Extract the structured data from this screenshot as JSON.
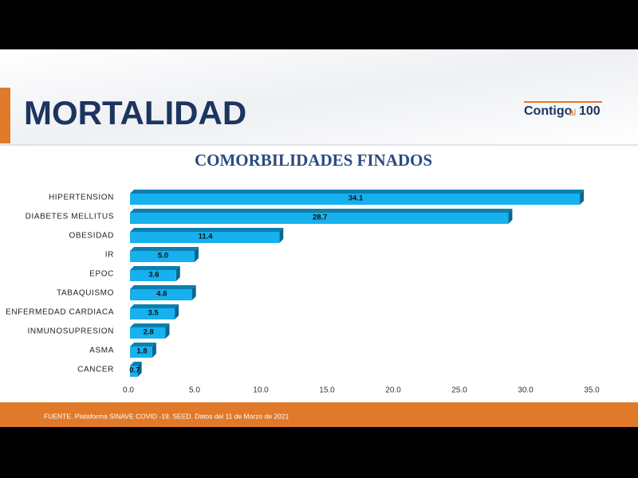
{
  "header": {
    "title": "MORTALIDAD",
    "logo": {
      "word": "Contigo",
      "small": "al",
      "number": "100"
    }
  },
  "chart_data": {
    "type": "bar",
    "orientation": "horizontal",
    "title": "COMORBILIDADES FINADOS",
    "categories": [
      "HIPERTENSION",
      "DIABETES MELLITUS",
      "OBESIDAD",
      "IR",
      "EPOC",
      "TABAQUISMO",
      "ENFERMEDAD CARDIACA",
      "INMUNOSUPRESION",
      "ASMA",
      "CANCER"
    ],
    "values": [
      34.1,
      28.7,
      11.4,
      5.0,
      3.6,
      4.8,
      3.5,
      2.8,
      1.8,
      0.7
    ],
    "value_labels": [
      "34.1",
      "28.7",
      "11.4",
      "5.0",
      "3.6",
      "4.8",
      "3.5",
      "2.8",
      "1.8",
      "0.7"
    ],
    "color": "#16b1ee",
    "xlim": [
      0,
      35
    ],
    "xticks": [
      {
        "value": 0,
        "label": "0.0"
      },
      {
        "value": 5,
        "label": "5.0"
      },
      {
        "value": 10,
        "label": "10.0"
      },
      {
        "value": 15,
        "label": "15.0"
      },
      {
        "value": 20,
        "label": "20.0"
      },
      {
        "value": 25,
        "label": "25.0"
      },
      {
        "value": 30,
        "label": "30.0"
      },
      {
        "value": 35,
        "label": "35.0"
      }
    ],
    "grid": false
  },
  "footer": {
    "source": "FUENTE. Plataforma SINAVE COVID -19, SEED. Datos del 11 de Marzo de 2021"
  }
}
